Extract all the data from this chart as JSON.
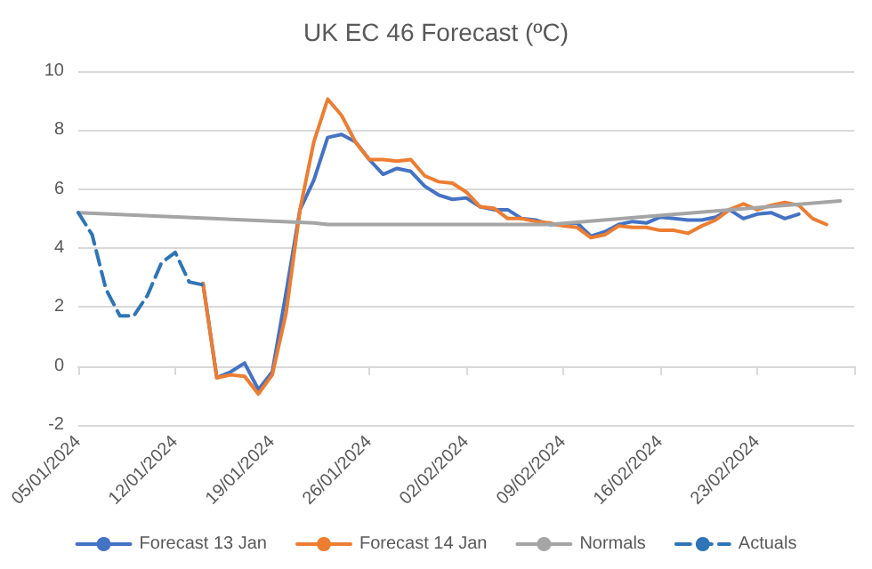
{
  "chart_data": {
    "type": "line",
    "title": "UK EC 46 Forecast (ºC)",
    "xlim": [
      "2024-01-05",
      "2024-03-01"
    ],
    "xticks": [
      {
        "value": "2024-01-05",
        "label": "05/01/2024"
      },
      {
        "value": "2024-01-12",
        "label": "12/01/2024"
      },
      {
        "value": "2024-01-19",
        "label": "19/01/2024"
      },
      {
        "value": "2024-01-26",
        "label": "26/01/2024"
      },
      {
        "value": "2024-02-02",
        "label": "02/02/2024"
      },
      {
        "value": "2024-02-09",
        "label": "09/02/2024"
      },
      {
        "value": "2024-02-16",
        "label": "16/02/2024"
      },
      {
        "value": "2024-02-23",
        "label": "23/02/2024"
      },
      {
        "value": "2024-03-01",
        "label": null
      }
    ],
    "ylim": [
      -2,
      10
    ],
    "yticks": [
      -2,
      0,
      2,
      4,
      6,
      8,
      10
    ],
    "grid": "y",
    "legend": "bottom",
    "marker": "none",
    "series": [
      {
        "name": "Forecast 13 Jan",
        "color": "#4472c4",
        "x": [
          "2024-01-14",
          "2024-01-15",
          "2024-01-16",
          "2024-01-17",
          "2024-01-18",
          "2024-01-19",
          "2024-01-20",
          "2024-01-21",
          "2024-01-22",
          "2024-01-23",
          "2024-01-24",
          "2024-01-25",
          "2024-01-26",
          "2024-01-27",
          "2024-01-28",
          "2024-01-29",
          "2024-01-30",
          "2024-01-31",
          "2024-02-01",
          "2024-02-02",
          "2024-02-03",
          "2024-02-04",
          "2024-02-05",
          "2024-02-06",
          "2024-02-07",
          "2024-02-08",
          "2024-02-09",
          "2024-02-10",
          "2024-02-11",
          "2024-02-12",
          "2024-02-13",
          "2024-02-14",
          "2024-02-15",
          "2024-02-16",
          "2024-02-17",
          "2024-02-18",
          "2024-02-19",
          "2024-02-20",
          "2024-02-21",
          "2024-02-22",
          "2024-02-23",
          "2024-02-24",
          "2024-02-25",
          "2024-02-26"
        ],
        "values": [
          2.8,
          -0.4,
          -0.2,
          0.1,
          -0.8,
          -0.2,
          2.5,
          5.3,
          6.3,
          7.75,
          7.85,
          7.6,
          7.0,
          6.5,
          6.7,
          6.6,
          6.1,
          5.8,
          5.65,
          5.7,
          5.4,
          5.3,
          5.3,
          5.0,
          4.95,
          4.8,
          4.8,
          4.85,
          4.4,
          4.55,
          4.8,
          4.9,
          4.85,
          5.05,
          5.0,
          4.95,
          4.95,
          5.05,
          5.3,
          5.0,
          5.15,
          5.2,
          5.0,
          5.15
        ]
      },
      {
        "name": "Forecast 14 Jan",
        "color": "#ed7d31",
        "x": [
          "2024-01-14",
          "2024-01-15",
          "2024-01-16",
          "2024-01-17",
          "2024-01-18",
          "2024-01-19",
          "2024-01-20",
          "2024-01-21",
          "2024-01-22",
          "2024-01-23",
          "2024-01-24",
          "2024-01-25",
          "2024-01-26",
          "2024-01-27",
          "2024-01-28",
          "2024-01-29",
          "2024-01-30",
          "2024-01-31",
          "2024-02-01",
          "2024-02-02",
          "2024-02-03",
          "2024-02-04",
          "2024-02-05",
          "2024-02-06",
          "2024-02-07",
          "2024-02-08",
          "2024-02-09",
          "2024-02-10",
          "2024-02-11",
          "2024-02-12",
          "2024-02-13",
          "2024-02-14",
          "2024-02-15",
          "2024-02-16",
          "2024-02-17",
          "2024-02-18",
          "2024-02-19",
          "2024-02-20",
          "2024-02-21",
          "2024-02-22",
          "2024-02-23",
          "2024-02-24",
          "2024-02-25",
          "2024-02-26",
          "2024-02-27",
          "2024-02-28"
        ],
        "values": [
          2.8,
          -0.4,
          -0.3,
          -0.35,
          -0.95,
          -0.3,
          1.8,
          5.3,
          7.6,
          9.05,
          8.5,
          7.6,
          7.0,
          7.0,
          6.95,
          7.0,
          6.45,
          6.25,
          6.2,
          5.9,
          5.4,
          5.35,
          5.0,
          5.0,
          4.9,
          4.85,
          4.75,
          4.7,
          4.35,
          4.45,
          4.75,
          4.7,
          4.7,
          4.6,
          4.6,
          4.5,
          4.75,
          4.95,
          5.3,
          5.5,
          5.3,
          5.45,
          5.55,
          5.45,
          5.0,
          4.8
        ]
      },
      {
        "name": "Normals",
        "color": "#a5a5a5",
        "x": [
          "2024-01-05",
          "2024-01-22",
          "2024-01-23",
          "2024-02-08",
          "2024-02-29"
        ],
        "values": [
          5.2,
          4.85,
          4.8,
          4.8,
          5.6
        ]
      },
      {
        "name": "Actuals",
        "color": "#2e75b6",
        "line_style": "dashed",
        "x": [
          "2024-01-05",
          "2024-01-06",
          "2024-01-07",
          "2024-01-08",
          "2024-01-09",
          "2024-01-10",
          "2024-01-11",
          "2024-01-12",
          "2024-01-13",
          "2024-01-14"
        ],
        "values": [
          5.2,
          4.45,
          2.6,
          1.7,
          1.7,
          2.4,
          3.5,
          3.85,
          2.85,
          2.75
        ]
      }
    ]
  }
}
